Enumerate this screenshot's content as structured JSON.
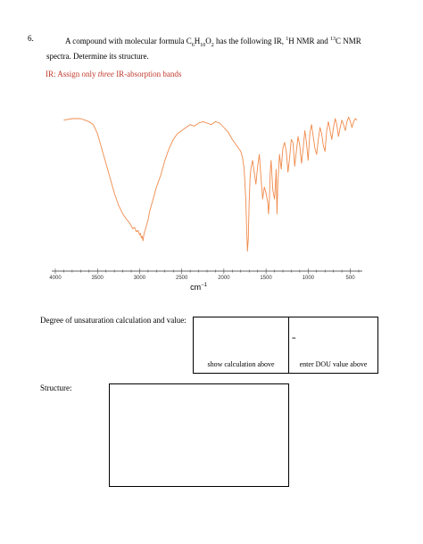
{
  "question": {
    "number": "6.",
    "text_part1": "A compound with molecular formula C",
    "c_sub": "6",
    "text_part2": "H",
    "h_sub": "10",
    "text_part3": "O",
    "o_sub": "2",
    "text_part4": " has the following IR, ",
    "h_sup": "1",
    "text_part5": "H NMR and ",
    "c13_sup": "13",
    "text_part6": "C NMR spectra. Determine its structure."
  },
  "ir_heading": {
    "prefix": "IR: Assign only ",
    "emphasis": "three",
    "suffix": " IR-absorption bands",
    "color": "#c0392b"
  },
  "chart_data": {
    "type": "line",
    "title": "",
    "xlabel": "cm",
    "xlabel_sup": "−1",
    "ylabel": "",
    "x_ticks": [
      "4000",
      "3500",
      "3000",
      "2500",
      "2000",
      "1500",
      "1000",
      "500"
    ],
    "xlim": [
      4000,
      400
    ],
    "ylim": [
      0,
      100
    ],
    "grid": false,
    "line_color": "#f08a4b",
    "series": [
      {
        "x": [
          3900,
          3800,
          3700,
          3650,
          3600,
          3550,
          3500,
          3450,
          3400,
          3350,
          3300,
          3250,
          3200,
          3150,
          3120,
          3100,
          3080,
          3060,
          3040,
          3020,
          3000,
          2990,
          2980,
          2970,
          2960,
          2950,
          2940,
          2920,
          2900,
          2880,
          2860,
          2840,
          2800,
          2750,
          2700,
          2650,
          2600,
          2550,
          2500,
          2450,
          2400,
          2350,
          2300,
          2250,
          2200,
          2150,
          2100,
          2050,
          2000,
          1950,
          1900,
          1850,
          1800,
          1780,
          1760,
          1740,
          1730,
          1720,
          1710,
          1700,
          1690,
          1680,
          1660,
          1640,
          1620,
          1600,
          1580,
          1560,
          1540,
          1520,
          1500,
          1480,
          1470,
          1460,
          1450,
          1440,
          1420,
          1400,
          1390,
          1380,
          1370,
          1360,
          1340,
          1320,
          1300,
          1280,
          1260,
          1240,
          1220,
          1200,
          1180,
          1160,
          1140,
          1120,
          1100,
          1080,
          1060,
          1040,
          1020,
          1000,
          980,
          960,
          940,
          920,
          900,
          880,
          860,
          840,
          820,
          800,
          780,
          760,
          740,
          720,
          700,
          680,
          660,
          640,
          620,
          600,
          580,
          560,
          540,
          520,
          500,
          480,
          460,
          440,
          420
        ],
        "y": [
          93,
          94,
          94,
          93,
          92,
          90,
          84,
          74,
          64,
          54,
          44,
          36,
          30,
          26,
          24,
          22,
          20,
          21,
          18,
          19,
          16,
          17,
          14,
          15,
          12,
          16,
          18,
          22,
          26,
          32,
          36,
          40,
          48,
          56,
          66,
          74,
          80,
          84,
          86,
          88,
          90,
          89,
          91,
          92,
          91,
          90,
          92,
          91,
          88,
          85,
          80,
          76,
          72,
          68,
          60,
          40,
          20,
          5,
          14,
          38,
          54,
          60,
          66,
          58,
          50,
          62,
          70,
          55,
          40,
          48,
          44,
          38,
          30,
          40,
          58,
          66,
          46,
          40,
          48,
          60,
          30,
          50,
          70,
          60,
          74,
          78,
          72,
          58,
          68,
          80,
          78,
          62,
          72,
          82,
          76,
          64,
          74,
          86,
          78,
          66,
          84,
          90,
          82,
          74,
          70,
          80,
          88,
          84,
          76,
          72,
          86,
          92,
          86,
          80,
          88,
          94,
          90,
          82,
          88,
          93,
          90,
          86,
          92,
          95,
          92,
          88,
          92,
          94,
          93
        ]
      }
    ]
  },
  "dou": {
    "label": "Degree of unsaturation calculation and value:",
    "calc_caption": "show calculation above",
    "value_symbol": "=",
    "value_caption": "enter DOU value above"
  },
  "structure": {
    "label": "Structure:"
  }
}
